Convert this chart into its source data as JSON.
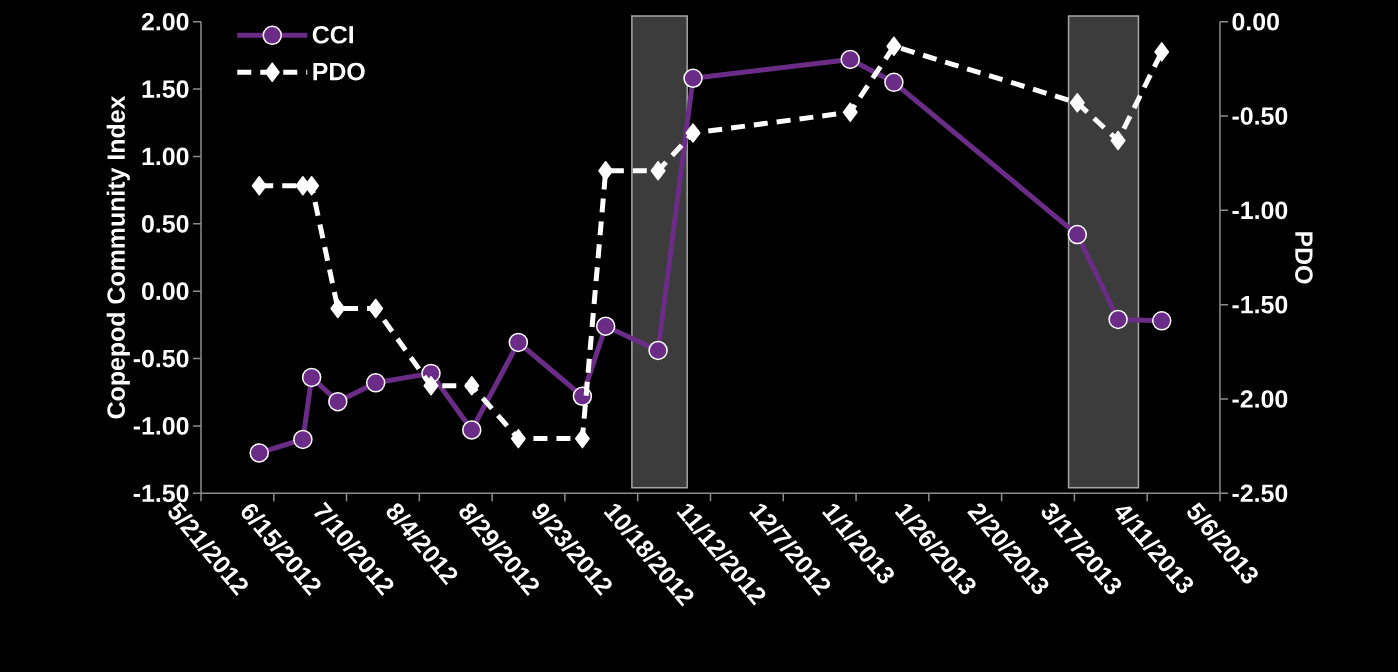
{
  "chart_data": {
    "type": "line",
    "x": [
      "2012-06-10",
      "2012-06-25",
      "2012-06-28",
      "2012-07-07",
      "2012-07-20",
      "2012-08-08",
      "2012-08-22",
      "2012-09-07",
      "2012-09-29",
      "2012-10-07",
      "2012-10-25",
      "2012-11-06",
      "2012-12-30",
      "2013-01-14",
      "2013-03-18",
      "2013-04-01",
      "2013-04-16"
    ],
    "series": [
      {
        "name": "CCI",
        "color": "#6b2c87",
        "marker": "circle",
        "line_style": "solid",
        "values": [
          -1.2,
          -1.1,
          -0.64,
          -0.82,
          -0.68,
          -0.61,
          -1.03,
          -0.38,
          -0.78,
          -0.26,
          -0.44,
          1.58,
          1.72,
          1.55,
          0.42,
          -0.21,
          -0.22
        ]
      },
      {
        "name": "PDO",
        "color": "#ffffff",
        "marker": "diamond",
        "line_style": "dashed",
        "axis": "y2",
        "values": [
          -0.87,
          -0.87,
          -0.87,
          -1.52,
          -1.52,
          -1.93,
          -1.93,
          -2.21,
          -2.21,
          -0.79,
          -0.79,
          -0.59,
          -0.48,
          -0.13,
          -0.43,
          -0.63,
          -0.16
        ]
      }
    ],
    "ylabel": "Copepod Community Index",
    "y2label": "PDO",
    "xlim": [
      "2012-05-21",
      "2013-05-06"
    ],
    "xticks": [
      {
        "value": "2012-05-21",
        "label": "5/21/2012"
      },
      {
        "value": "2012-06-15",
        "label": "6/15/2012"
      },
      {
        "value": "2012-07-10",
        "label": "7/10/2012"
      },
      {
        "value": "2012-08-04",
        "label": "8/4/2012"
      },
      {
        "value": "2012-08-29",
        "label": "8/29/2012"
      },
      {
        "value": "2012-09-23",
        "label": "9/23/2012"
      },
      {
        "value": "2012-10-18",
        "label": "10/18/2012"
      },
      {
        "value": "2012-11-12",
        "label": "11/12/2012"
      },
      {
        "value": "2012-12-07",
        "label": "12/7/2012"
      },
      {
        "value": "2013-01-01",
        "label": "1/1/2013"
      },
      {
        "value": "2013-01-26",
        "label": "1/26/2013"
      },
      {
        "value": "2013-02-20",
        "label": "2/20/2013"
      },
      {
        "value": "2013-03-17",
        "label": "3/17/2013"
      },
      {
        "value": "2013-04-11",
        "label": "4/11/2013"
      },
      {
        "value": "2013-05-06",
        "label": "5/6/2013"
      }
    ],
    "ylim": [
      -1.5,
      2.0
    ],
    "yticks": [
      {
        "value": -1.5,
        "label": "-1.50"
      },
      {
        "value": -1.0,
        "label": "-1.00"
      },
      {
        "value": -0.5,
        "label": "-0.50"
      },
      {
        "value": 0.0,
        "label": "0.00"
      },
      {
        "value": 0.5,
        "label": "0.50"
      },
      {
        "value": 1.0,
        "label": "1.00"
      },
      {
        "value": 1.5,
        "label": "1.50"
      },
      {
        "value": 2.0,
        "label": "2.00"
      }
    ],
    "y2lim": [
      -2.5,
      0.0
    ],
    "y2ticks": [
      {
        "value": -2.5,
        "label": "-2.50"
      },
      {
        "value": -2.0,
        "label": "-2.00"
      },
      {
        "value": -1.5,
        "label": "-1.50"
      },
      {
        "value": -1.0,
        "label": "-1.00"
      },
      {
        "value": -0.5,
        "label": "-0.50"
      },
      {
        "value": 0.0,
        "label": "0.00"
      }
    ],
    "bands": [
      {
        "axis": "x",
        "from": "2012-10-16",
        "to": "2012-11-04",
        "color": "#3c3c3c"
      },
      {
        "axis": "x",
        "from": "2013-03-15",
        "to": "2013-04-08",
        "color": "#3c3c3c"
      }
    ],
    "grid": false,
    "legend": "top left"
  }
}
